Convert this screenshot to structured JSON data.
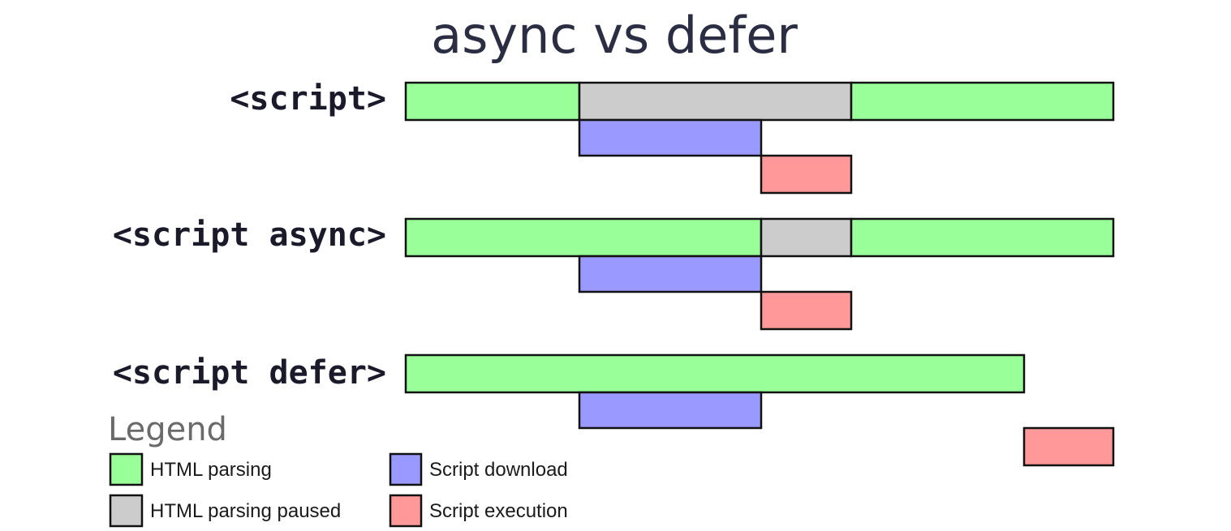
{
  "title": "async vs defer",
  "rows": [
    {
      "label": "<script>"
    },
    {
      "label": "<script async>"
    },
    {
      "label": "<script defer>"
    }
  ],
  "legend": {
    "title": "Legend",
    "items": [
      "HTML parsing",
      "HTML parsing paused",
      "Script download",
      "Script execution"
    ]
  }
}
